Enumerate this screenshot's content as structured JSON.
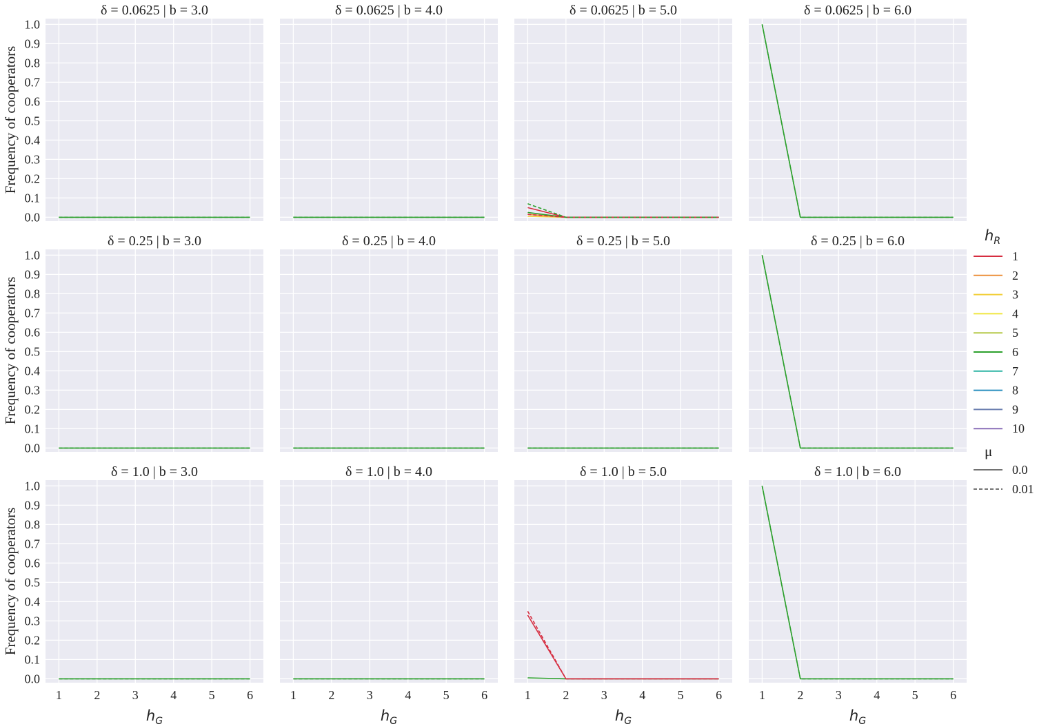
{
  "chart_data": {
    "type": "line",
    "layout": "facet-grid 3 rows x 4 columns",
    "x_label": "h",
    "x_label_sub": "G",
    "y_label": "Frequency of cooperators",
    "x_ticks": [
      1,
      2,
      3,
      4,
      5,
      6
    ],
    "x_tick_labels": [
      "1",
      "2",
      "3",
      "4",
      "5",
      "6"
    ],
    "y_ticks": [
      0.0,
      0.1,
      0.2,
      0.3,
      0.4,
      0.5,
      0.6,
      0.7,
      0.8,
      0.9,
      1.0
    ],
    "y_tick_labels": [
      "0.0",
      "0.1",
      "0.2",
      "0.3",
      "0.4",
      "0.5",
      "0.6",
      "0.7",
      "0.8",
      "0.9",
      "1.0"
    ],
    "xlim": [
      0.65,
      6.35
    ],
    "ylim": [
      -0.02,
      1.03
    ],
    "grid": true,
    "background": "#eaeaf2",
    "legend": {
      "placement": "right",
      "hue_title": "h",
      "hue_title_sub": "R",
      "hue_entries": [
        {
          "label": "1",
          "color": "#d62d40"
        },
        {
          "label": "2",
          "color": "#ec8f3a"
        },
        {
          "label": "3",
          "color": "#f2cf3a"
        },
        {
          "label": "4",
          "color": "#f0e640"
        },
        {
          "label": "5",
          "color": "#b6c94a"
        },
        {
          "label": "6",
          "color": "#2ca02c"
        },
        {
          "label": "7",
          "color": "#2bb3a4"
        },
        {
          "label": "8",
          "color": "#2a8fbf"
        },
        {
          "label": "9",
          "color": "#6b7fb0"
        },
        {
          "label": "10",
          "color": "#8a6fb8"
        }
      ],
      "style_title": "μ",
      "style_entries": [
        {
          "label": "0.0",
          "dash": "solid"
        },
        {
          "label": "0.01",
          "dash": "dashed"
        }
      ]
    },
    "panels": [
      {
        "title": "δ = 0.0625 | b = 3.0",
        "series": [
          {
            "hue": "6",
            "mu": "0.0",
            "x": [
              1,
              2,
              3,
              4,
              5,
              6
            ],
            "y": [
              0,
              0,
              0,
              0,
              0,
              0
            ]
          },
          {
            "hue": "6",
            "mu": "0.01",
            "x": [
              1,
              2,
              3,
              4,
              5,
              6
            ],
            "y": [
              0,
              0,
              0,
              0,
              0,
              0
            ]
          }
        ]
      },
      {
        "title": "δ = 0.0625 | b = 4.0",
        "series": [
          {
            "hue": "6",
            "mu": "0.0",
            "x": [
              1,
              2,
              3,
              4,
              5,
              6
            ],
            "y": [
              0,
              0,
              0,
              0,
              0,
              0
            ]
          },
          {
            "hue": "6",
            "mu": "0.01",
            "x": [
              1,
              2,
              3,
              4,
              5,
              6
            ],
            "y": [
              0,
              0,
              0,
              0,
              0,
              0
            ]
          }
        ]
      },
      {
        "title": "δ = 0.0625 | b = 5.0",
        "series": [
          {
            "hue": "3",
            "mu": "0.0",
            "x": [
              1,
              2,
              3,
              4,
              5,
              6
            ],
            "y": [
              0.005,
              0,
              0,
              0,
              0,
              0
            ]
          },
          {
            "hue": "2",
            "mu": "0.0",
            "x": [
              1,
              2,
              3,
              4,
              5,
              6
            ],
            "y": [
              0.015,
              0,
              0,
              0,
              0,
              0
            ]
          },
          {
            "hue": "6",
            "mu": "0.0",
            "x": [
              1,
              2,
              3,
              4,
              5,
              6
            ],
            "y": [
              0.025,
              0,
              0,
              0,
              0,
              0
            ]
          },
          {
            "hue": "1",
            "mu": "0.01",
            "x": [
              1,
              2,
              3,
              4,
              5,
              6
            ],
            "y": [
              0.015,
              0,
              0,
              0,
              0,
              0
            ]
          },
          {
            "hue": "1",
            "mu": "0.0",
            "x": [
              1,
              2,
              3,
              4,
              5,
              6
            ],
            "y": [
              0.05,
              0,
              0,
              0,
              0,
              0
            ]
          },
          {
            "hue": "6",
            "mu": "0.01",
            "x": [
              1,
              2,
              3,
              4,
              5,
              6
            ],
            "y": [
              0.07,
              0,
              0,
              0,
              0,
              0
            ]
          }
        ]
      },
      {
        "title": "δ = 0.0625 | b = 6.0",
        "series": [
          {
            "hue": "6",
            "mu": "0.0",
            "x": [
              1,
              2,
              3,
              4,
              5,
              6
            ],
            "y": [
              1.0,
              0,
              0,
              0,
              0,
              0
            ]
          },
          {
            "hue": "6",
            "mu": "0.01",
            "x": [
              1,
              2,
              3,
              4,
              5,
              6
            ],
            "y": [
              1.0,
              0,
              0,
              0,
              0,
              0
            ]
          }
        ]
      },
      {
        "title": "δ = 0.25 | b = 3.0",
        "series": [
          {
            "hue": "6",
            "mu": "0.0",
            "x": [
              1,
              2,
              3,
              4,
              5,
              6
            ],
            "y": [
              0,
              0,
              0,
              0,
              0,
              0
            ]
          },
          {
            "hue": "6",
            "mu": "0.01",
            "x": [
              1,
              2,
              3,
              4,
              5,
              6
            ],
            "y": [
              0,
              0,
              0,
              0,
              0,
              0
            ]
          }
        ]
      },
      {
        "title": "δ = 0.25 | b = 4.0",
        "series": [
          {
            "hue": "6",
            "mu": "0.0",
            "x": [
              1,
              2,
              3,
              4,
              5,
              6
            ],
            "y": [
              0,
              0,
              0,
              0,
              0,
              0
            ]
          },
          {
            "hue": "6",
            "mu": "0.01",
            "x": [
              1,
              2,
              3,
              4,
              5,
              6
            ],
            "y": [
              0,
              0,
              0,
              0,
              0,
              0
            ]
          }
        ]
      },
      {
        "title": "δ = 0.25 | b = 5.0",
        "series": [
          {
            "hue": "6",
            "mu": "0.0",
            "x": [
              1,
              2,
              3,
              4,
              5,
              6
            ],
            "y": [
              0,
              0,
              0,
              0,
              0,
              0
            ]
          },
          {
            "hue": "6",
            "mu": "0.01",
            "x": [
              1,
              2,
              3,
              4,
              5,
              6
            ],
            "y": [
              0,
              0,
              0,
              0,
              0,
              0
            ]
          }
        ]
      },
      {
        "title": "δ = 0.25 | b = 6.0",
        "series": [
          {
            "hue": "6",
            "mu": "0.0",
            "x": [
              1,
              2,
              3,
              4,
              5,
              6
            ],
            "y": [
              1.0,
              0,
              0,
              0,
              0,
              0
            ]
          },
          {
            "hue": "6",
            "mu": "0.01",
            "x": [
              1,
              2,
              3,
              4,
              5,
              6
            ],
            "y": [
              1.0,
              0,
              0,
              0,
              0,
              0
            ]
          }
        ]
      },
      {
        "title": "δ = 1.0 | b = 3.0",
        "series": [
          {
            "hue": "6",
            "mu": "0.0",
            "x": [
              1,
              2,
              3,
              4,
              5,
              6
            ],
            "y": [
              0,
              0,
              0,
              0,
              0,
              0
            ]
          },
          {
            "hue": "6",
            "mu": "0.01",
            "x": [
              1,
              2,
              3,
              4,
              5,
              6
            ],
            "y": [
              0,
              0,
              0,
              0,
              0,
              0
            ]
          }
        ]
      },
      {
        "title": "δ = 1.0 | b = 4.0",
        "series": [
          {
            "hue": "6",
            "mu": "0.0",
            "x": [
              1,
              2,
              3,
              4,
              5,
              6
            ],
            "y": [
              0,
              0,
              0,
              0,
              0,
              0
            ]
          },
          {
            "hue": "6",
            "mu": "0.01",
            "x": [
              1,
              2,
              3,
              4,
              5,
              6
            ],
            "y": [
              0,
              0,
              0,
              0,
              0,
              0
            ]
          }
        ]
      },
      {
        "title": "δ = 1.0 | b = 5.0",
        "series": [
          {
            "hue": "6",
            "mu": "0.0",
            "x": [
              1,
              2,
              3,
              4,
              5,
              6
            ],
            "y": [
              0.005,
              0,
              0,
              0,
              0,
              0
            ]
          },
          {
            "hue": "1",
            "mu": "0.0",
            "x": [
              1,
              2,
              3,
              4,
              5,
              6
            ],
            "y": [
              0.33,
              0,
              0,
              0,
              0,
              0
            ]
          },
          {
            "hue": "1",
            "mu": "0.01",
            "x": [
              1,
              2,
              3,
              4,
              5,
              6
            ],
            "y": [
              0.35,
              0,
              0,
              0,
              0,
              0
            ]
          }
        ]
      },
      {
        "title": "δ = 1.0 | b = 6.0",
        "series": [
          {
            "hue": "6",
            "mu": "0.0",
            "x": [
              1,
              2,
              3,
              4,
              5,
              6
            ],
            "y": [
              1.0,
              0,
              0,
              0,
              0,
              0
            ]
          },
          {
            "hue": "6",
            "mu": "0.01",
            "x": [
              1,
              2,
              3,
              4,
              5,
              6
            ],
            "y": [
              1.0,
              0,
              0,
              0,
              0,
              0
            ]
          }
        ]
      }
    ]
  }
}
